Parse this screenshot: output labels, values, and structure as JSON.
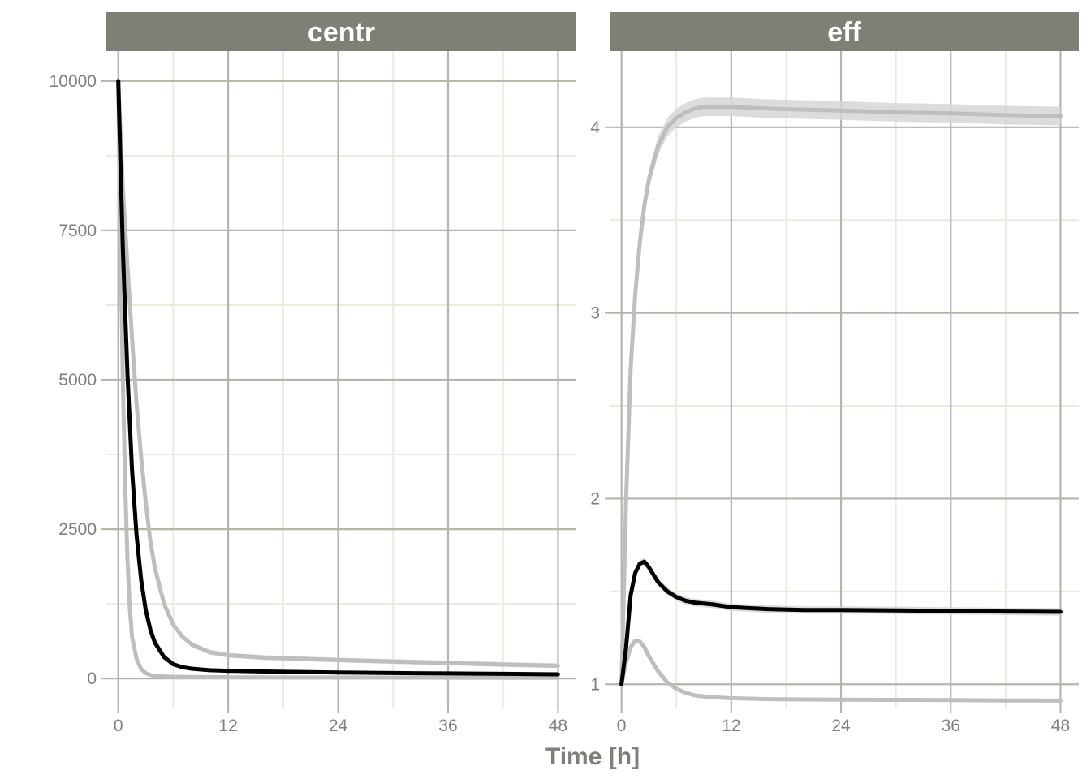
{
  "colors": {
    "strip_bg": "#7f7f77",
    "strip_text": "#ffffff",
    "grid_major": "#b5b5a9",
    "grid_minor": "#e9ecdc",
    "tick_text": "#7f7f7f",
    "axis_title": "#7f7f77",
    "median_line": "#000000",
    "percentile_line": "#bebebe",
    "ribbon": "#d6d6d6"
  },
  "chart_data": {
    "type": "line",
    "xlabel": "Time [h]",
    "x_ticks": [
      0,
      12,
      24,
      36,
      48
    ],
    "panels": [
      {
        "title": "centr",
        "xlim": [
          -1.3,
          50
        ],
        "ylim": [
          -500,
          10500
        ],
        "y_ticks": [
          0,
          2500,
          5000,
          7500,
          10000
        ],
        "y_tick_labels": [
          "0",
          "2500",
          "5000",
          "7500",
          "10000"
        ],
        "series": [
          {
            "role": "upper",
            "x": [
              0,
              0.5,
              1,
              1.5,
              2,
              2.5,
              3,
              3.5,
              4,
              5,
              6,
              7,
              8,
              10,
              12,
              16,
              20,
              24,
              30,
              36,
              42,
              48
            ],
            "y": [
              10000,
              8200,
              6900,
              5700,
              4600,
              3700,
              2950,
              2300,
              1850,
              1250,
              900,
              700,
              570,
              440,
              390,
              350,
              330,
              310,
              285,
              260,
              235,
              215
            ],
            "band": 40
          },
          {
            "role": "median",
            "x": [
              0,
              0.5,
              1,
              1.5,
              2,
              2.5,
              3,
              3.5,
              4,
              5,
              6,
              7,
              8,
              10,
              12,
              16,
              20,
              24,
              30,
              36,
              42,
              48
            ],
            "y": [
              10000,
              7200,
              5100,
              3500,
              2400,
              1650,
              1150,
              820,
              600,
              360,
              240,
              190,
              165,
              140,
              130,
              118,
              110,
              102,
              92,
              85,
              78,
              70
            ],
            "band": 30
          },
          {
            "role": "lower",
            "x": [
              0,
              0.25,
              0.5,
              0.75,
              1,
              1.25,
              1.5,
              2,
              2.5,
              3,
              3.5,
              4,
              5,
              6,
              8,
              12,
              24,
              36,
              48
            ],
            "y": [
              10000,
              7200,
              5000,
              3300,
              2000,
              1200,
              700,
              330,
              160,
              90,
              60,
              45,
              35,
              30,
              25,
              22,
              18,
              15,
              12
            ],
            "band": 30
          }
        ]
      },
      {
        "title": "eff",
        "xlim": [
          -1.3,
          50
        ],
        "ylim": [
          0.87,
          4.41
        ],
        "y_ticks": [
          1,
          2,
          3,
          4
        ],
        "y_tick_labels": [
          "1",
          "2",
          "3",
          "4"
        ],
        "series": [
          {
            "role": "upper",
            "x": [
              0,
              0.5,
              1,
              1.5,
              2,
              2.5,
              3,
              4,
              5,
              6,
              7,
              8,
              9,
              10,
              12,
              16,
              20,
              24,
              30,
              36,
              42,
              48
            ],
            "y": [
              1.0,
              2.0,
              2.7,
              3.1,
              3.38,
              3.58,
              3.72,
              3.9,
              4.0,
              4.05,
              4.08,
              4.1,
              4.11,
              4.11,
              4.11,
              4.1,
              4.095,
              4.09,
              4.08,
              4.075,
              4.065,
              4.06
            ],
            "band": 0.05
          },
          {
            "role": "median",
            "x": [
              0,
              0.5,
              1,
              1.5,
              2,
              2.5,
              3,
              4,
              5,
              6,
              7,
              8,
              10,
              12,
              16,
              20,
              24,
              30,
              36,
              42,
              48
            ],
            "y": [
              1.0,
              1.2,
              1.48,
              1.6,
              1.65,
              1.66,
              1.63,
              1.55,
              1.5,
              1.47,
              1.45,
              1.44,
              1.43,
              1.415,
              1.405,
              1.4,
              1.4,
              1.398,
              1.395,
              1.392,
              1.39
            ],
            "band": 0.02
          },
          {
            "role": "lower",
            "x": [
              0,
              0.5,
              1,
              1.5,
              2,
              2.5,
              3,
              4,
              5,
              6,
              7,
              8,
              10,
              12,
              16,
              20,
              24,
              30,
              36,
              42,
              48
            ],
            "y": [
              1.0,
              1.12,
              1.2,
              1.235,
              1.23,
              1.2,
              1.15,
              1.07,
              1.01,
              0.975,
              0.955,
              0.94,
              0.93,
              0.925,
              0.92,
              0.918,
              0.917,
              0.916,
              0.915,
              0.913,
              0.912
            ],
            "band": 0.01
          }
        ]
      }
    ]
  }
}
